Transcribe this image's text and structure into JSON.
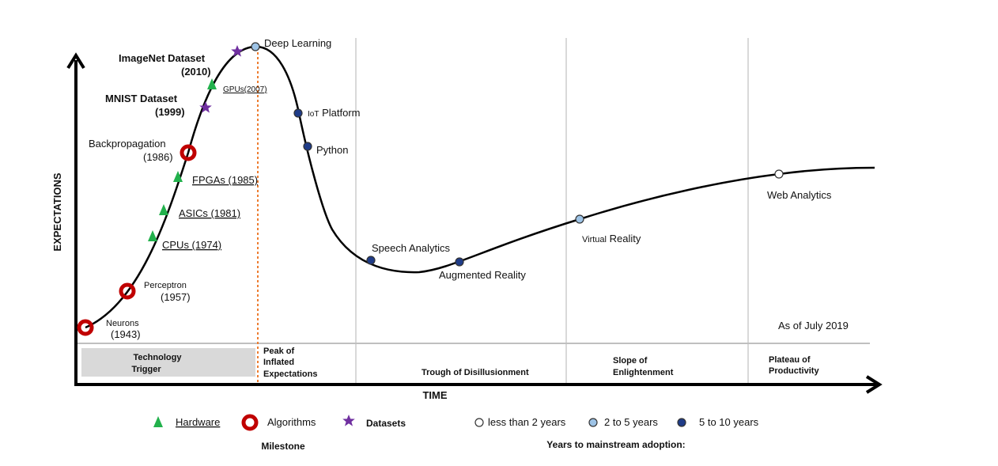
{
  "axes": {
    "y_label": "EXPECTATIONS",
    "x_label": "TIME"
  },
  "note": "As of July 2019",
  "phases": {
    "trigger": [
      "Technology",
      "Trigger"
    ],
    "peak": [
      "Peak of",
      "Inflated",
      "Expectations"
    ],
    "trough": "Trough of Disillusionment",
    "slope": [
      "Slope of",
      "Enlightenment"
    ],
    "plateau": [
      "Plateau of",
      "Productivity"
    ]
  },
  "milestones": {
    "neurons": [
      "Neurons",
      "(1943)"
    ],
    "perceptron": [
      "Perceptron",
      "(1957)"
    ],
    "cpus": "CPUs (1974)",
    "asics": "ASICs (1981)",
    "fpgas": "FPGAs (1985)",
    "backprop": [
      "Backpropagation",
      "(1986)"
    ],
    "mnist": [
      "MNIST Dataset",
      "(1999)"
    ],
    "gpus": "GPUs(2007)",
    "imagenet": [
      "ImageNet Dataset",
      "(2010)"
    ]
  },
  "technologies": {
    "deep_learning": "Deep Learning",
    "iot_prefix": "IoT",
    "iot_rest": "Platform",
    "python": "Python",
    "speech": "Speech Analytics",
    "ar": "Augmented Reality",
    "vr_prefix": "Virtual",
    "vr_rest": "Reality",
    "web": "Web Analytics"
  },
  "legend": {
    "hardware": "Hardware",
    "algorithms": "Algorithms",
    "datasets": "Datasets",
    "milestone_title": "Milestone",
    "lt2": "less than 2 years",
    "y2to5": "2 to 5 years",
    "y5to10": "5 to 10 years",
    "adoption_title": "Years to mainstream  adoption:"
  },
  "colors": {
    "hardware": "#22b14c",
    "algorithms": "#c00000",
    "datasets": "#7030a0",
    "lt2": "#ffffff",
    "y2to5": "#9dc3e6",
    "y5to10": "#1f3c88",
    "peak_line": "#ed7d31",
    "trigger_box": "#d9d9d9"
  }
}
